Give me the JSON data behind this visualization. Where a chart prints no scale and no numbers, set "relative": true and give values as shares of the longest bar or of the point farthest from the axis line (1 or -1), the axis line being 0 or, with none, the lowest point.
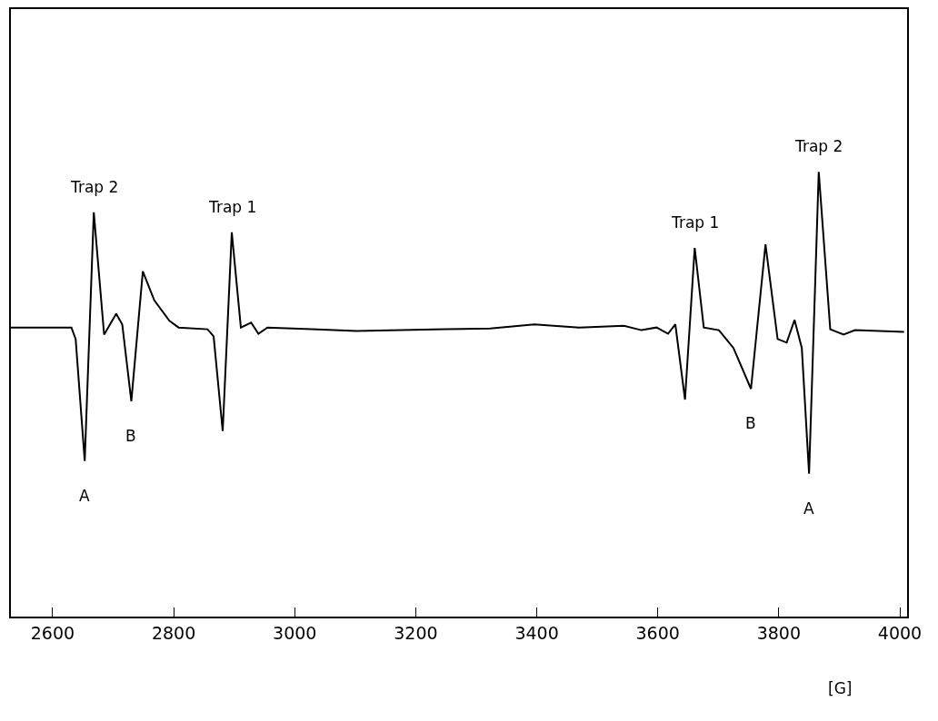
{
  "chart_data": {
    "type": "line",
    "relative": true,
    "xlabel": "[G]",
    "xlim": [
      2531,
      4012
    ],
    "xticks": [
      2600,
      2800,
      3000,
      3200,
      3400,
      3600,
      3800,
      4000
    ],
    "marker": "none",
    "line_style": "solid",
    "x": [
      2531,
      2631,
      2638,
      2653,
      2668,
      2685,
      2705,
      2715,
      2730,
      2749,
      2768,
      2793,
      2808,
      2856,
      2866,
      2881,
      2896,
      2911,
      2928,
      2940,
      2955,
      3028,
      3102,
      3176,
      3249,
      3323,
      3396,
      3470,
      3544,
      3573,
      3598,
      3617,
      3629,
      3645,
      3661,
      3676,
      3701,
      3725,
      3754,
      3778,
      3798,
      3813,
      3826,
      3838,
      3850,
      3866,
      3885,
      3907,
      3926,
      4007
    ],
    "series": [
      {
        "color": "#000000",
        "values": [
          0.65,
          0.65,
          0.624,
          0.35,
          0.909,
          0.634,
          0.681,
          0.657,
          0.484,
          0.776,
          0.711,
          0.665,
          0.65,
          0.646,
          0.63,
          0.417,
          0.864,
          0.65,
          0.661,
          0.636,
          0.65,
          0.646,
          0.642,
          0.644,
          0.646,
          0.648,
          0.657,
          0.65,
          0.654,
          0.644,
          0.65,
          0.636,
          0.657,
          0.488,
          0.829,
          0.65,
          0.644,
          0.604,
          0.512,
          0.837,
          0.624,
          0.616,
          0.667,
          0.604,
          0.321,
          1,
          0.646,
          0.634,
          0.644,
          0.64
        ]
      }
    ],
    "annotations": [
      {
        "text": "Trap 2",
        "x": 2668,
        "y": 0.909
      },
      {
        "text": "A",
        "x": 2653,
        "y": 0.35
      },
      {
        "text": "B",
        "x": 2730,
        "y": 0.484
      },
      {
        "text": "Trap 1",
        "x": 2896,
        "y": 0.864
      },
      {
        "text": "Trap 1",
        "x": 3661,
        "y": 0.829
      },
      {
        "text": "B",
        "x": 3754,
        "y": 0.512
      },
      {
        "text": "A",
        "x": 3850,
        "y": 0.321
      },
      {
        "text": "Trap 2",
        "x": 3866,
        "y": 1
      }
    ]
  }
}
